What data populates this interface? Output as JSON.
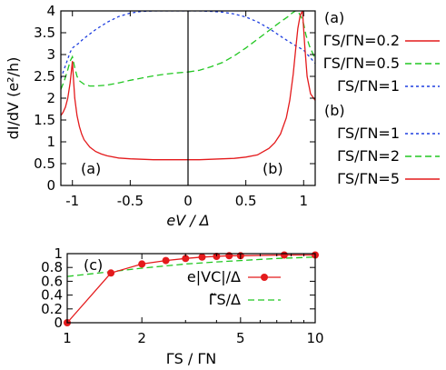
{
  "chart_data": [
    {
      "type": "line",
      "panel_labels": [
        "(a)",
        "(b)"
      ],
      "xlabel": "eV / Δ",
      "ylabel": "dI/dV (e²/h)",
      "xlim": [
        -1.1,
        1.1
      ],
      "ylim": [
        0,
        4
      ],
      "x_ticks": [
        "-1",
        "-0.5",
        "0",
        "0.5",
        "1"
      ],
      "y_ticks": [
        "0",
        "0.5",
        "1",
        "1.5",
        "2",
        "2.5",
        "3",
        "3.5",
        "4"
      ],
      "legend_groups": [
        {
          "label": "(a)",
          "entries": [
            {
              "name": "ΓS/ΓN=0.2",
              "color": "#e41a1c",
              "dash": "solid"
            },
            {
              "name": "ΓS/ΓN=0.5",
              "color": "#22c722",
              "dash": "dashed"
            },
            {
              "name": "ΓS/ΓN=1",
              "color": "#1f3fe0",
              "dash": "dotted"
            }
          ]
        },
        {
          "label": "(b)",
          "entries": [
            {
              "name": "ΓS/ΓN=1",
              "color": "#1f3fe0",
              "dash": "dotted"
            },
            {
              "name": "ΓS/ΓN=2",
              "color": "#22c722",
              "dash": "dashed"
            },
            {
              "name": "ΓS/ΓN=5",
              "color": "#e41a1c",
              "dash": "solid"
            }
          ]
        }
      ],
      "series": [
        {
          "name": "(a) ΓS/ΓN=0.2",
          "color": "#e41a1c",
          "dash": "solid",
          "x_range": [
            -1.1,
            0
          ],
          "x": [
            -1.1,
            -1.08,
            -1.06,
            -1.04,
            -1.02,
            -1.01,
            -1.0,
            -0.99,
            -0.98,
            -0.96,
            -0.94,
            -0.92,
            -0.9,
            -0.85,
            -0.8,
            -0.75,
            -0.7,
            -0.6,
            -0.5,
            -0.4,
            -0.3,
            -0.2,
            -0.1,
            0.0
          ],
          "y": [
            1.6,
            1.68,
            1.8,
            2.0,
            2.35,
            2.6,
            2.85,
            2.4,
            2.0,
            1.6,
            1.35,
            1.18,
            1.05,
            0.88,
            0.78,
            0.72,
            0.68,
            0.63,
            0.61,
            0.6,
            0.59,
            0.59,
            0.59,
            0.59
          ]
        },
        {
          "name": "(a) ΓS/ΓN=0.5",
          "color": "#22c722",
          "dash": "dashed",
          "x_range": [
            -1.1,
            0
          ],
          "x": [
            -1.1,
            -1.07,
            -1.04,
            -1.02,
            -1.0,
            -0.98,
            -0.96,
            -0.94,
            -0.9,
            -0.85,
            -0.8,
            -0.75,
            -0.7,
            -0.6,
            -0.5,
            -0.4,
            -0.3,
            -0.2,
            -0.1,
            0.0
          ],
          "y": [
            2.2,
            2.4,
            2.65,
            2.85,
            2.95,
            2.7,
            2.5,
            2.4,
            2.32,
            2.28,
            2.28,
            2.29,
            2.3,
            2.35,
            2.41,
            2.46,
            2.51,
            2.55,
            2.58,
            2.6
          ]
        },
        {
          "name": "(a) ΓS/ΓN=1",
          "color": "#1f3fe0",
          "dash": "dotted",
          "x_range": [
            -1.1,
            0
          ],
          "x": [
            -1.1,
            -1.06,
            -1.02,
            -1.0,
            -0.95,
            -0.9,
            -0.8,
            -0.7,
            -0.6,
            -0.5,
            -0.4,
            -0.3,
            -0.2,
            -0.1,
            0.0
          ],
          "y": [
            2.45,
            2.75,
            3.05,
            3.15,
            3.25,
            3.37,
            3.57,
            3.74,
            3.87,
            3.95,
            3.99,
            4.0,
            4.0,
            4.0,
            4.0
          ]
        },
        {
          "name": "(b) ΓS/ΓN=1",
          "color": "#1f3fe0",
          "dash": "dotted",
          "x_range": [
            0,
            1.1
          ],
          "x": [
            0.0,
            0.1,
            0.2,
            0.3,
            0.4,
            0.5,
            0.6,
            0.7,
            0.8,
            0.9,
            1.0,
            1.05,
            1.1
          ],
          "y": [
            4.0,
            4.0,
            3.99,
            3.97,
            3.93,
            3.86,
            3.75,
            3.6,
            3.42,
            3.25,
            3.1,
            2.95,
            2.8
          ]
        },
        {
          "name": "(b) ΓS/ΓN=2",
          "color": "#22c722",
          "dash": "dashed",
          "x_range": [
            0,
            1.1
          ],
          "x": [
            0.0,
            0.1,
            0.2,
            0.3,
            0.4,
            0.5,
            0.6,
            0.7,
            0.8,
            0.86,
            0.9,
            0.93,
            0.95,
            0.98,
            1.0,
            1.02,
            1.05,
            1.1
          ],
          "y": [
            2.6,
            2.64,
            2.72,
            2.82,
            2.97,
            3.15,
            3.35,
            3.55,
            3.75,
            3.86,
            3.95,
            4.0,
            4.0,
            3.85,
            3.7,
            3.45,
            3.2,
            2.9
          ]
        },
        {
          "name": "(b) ΓS/ΓN=5",
          "color": "#e41a1c",
          "dash": "solid",
          "x_range": [
            0,
            1.1
          ],
          "x": [
            0.0,
            0.1,
            0.2,
            0.3,
            0.4,
            0.5,
            0.6,
            0.7,
            0.75,
            0.8,
            0.85,
            0.88,
            0.91,
            0.93,
            0.95,
            0.97,
            0.99,
            1.01,
            1.03,
            1.06,
            1.1
          ],
          "y": [
            0.59,
            0.59,
            0.6,
            0.61,
            0.62,
            0.65,
            0.7,
            0.85,
            0.98,
            1.18,
            1.55,
            1.95,
            2.55,
            3.1,
            3.6,
            3.9,
            4.0,
            3.2,
            2.5,
            2.1,
            1.95
          ]
        }
      ]
    },
    {
      "type": "line",
      "panel_label": "(c)",
      "xlabel": "ΓS / ΓN",
      "x_scale": "log",
      "xlim": [
        1,
        10
      ],
      "ylim": [
        0,
        1
      ],
      "x_ticks": [
        "1",
        "2",
        "5",
        "10"
      ],
      "y_ticks": [
        "0",
        "0.2",
        "0.4",
        "0.6",
        "0.8",
        "1"
      ],
      "legend": [
        {
          "name": "e|VC|/Δ",
          "color": "#e41a1c",
          "style": "line+points"
        },
        {
          "name": "Γ̃S/Δ",
          "color": "#22c722",
          "style": "dashed"
        }
      ],
      "series": [
        {
          "name": "e|VC|/Δ",
          "color": "#e41a1c",
          "x": [
            1,
            1.5,
            2,
            2.5,
            3,
            3.5,
            4,
            4.5,
            5,
            7.5,
            10
          ],
          "y": [
            0.0,
            0.72,
            0.85,
            0.9,
            0.93,
            0.95,
            0.96,
            0.97,
            0.97,
            0.98,
            0.98
          ]
        },
        {
          "name": "Γ̃S/Δ",
          "color": "#22c722",
          "x": [
            1,
            1.5,
            2,
            3,
            4,
            5,
            7,
            10
          ],
          "y": [
            0.67,
            0.74,
            0.79,
            0.85,
            0.88,
            0.9,
            0.93,
            0.95
          ]
        }
      ]
    }
  ]
}
